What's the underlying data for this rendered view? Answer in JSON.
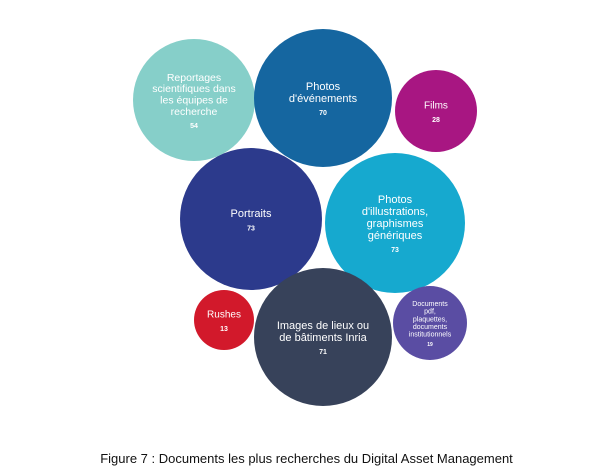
{
  "figure": {
    "caption": "Figure 7 : Documents les plus recherches du Digital Asset Management"
  },
  "chart_data": {
    "type": "bubble",
    "title": "",
    "series": [
      {
        "label": [
          "Reportages",
          "scientifiques dans",
          "les équipes de",
          "recherche"
        ],
        "value": 54,
        "color": "#86cfc9"
      },
      {
        "label": [
          "Photos",
          "d'événements"
        ],
        "value": 70,
        "color": "#1566a0"
      },
      {
        "label": [
          "Films"
        ],
        "value": 28,
        "color": "#a81682"
      },
      {
        "label": [
          "Portraits"
        ],
        "value": 73,
        "color": "#2c3a8c"
      },
      {
        "label": [
          "Photos",
          "d'illustrations,",
          "graphismes",
          "génériques"
        ],
        "value": 73,
        "color": "#16a9cf"
      },
      {
        "label": [
          "Rushes"
        ],
        "value": 13,
        "color": "#d2192b"
      },
      {
        "label": [
          "Images de lieux ou",
          "de bâtiments Inria"
        ],
        "value": 71,
        "color": "#37425a"
      },
      {
        "label": [
          "Documents",
          "pdf,",
          "plaquettes,",
          "documents",
          "institutionnels"
        ],
        "value": 19,
        "color": "#5a4da3"
      }
    ]
  }
}
